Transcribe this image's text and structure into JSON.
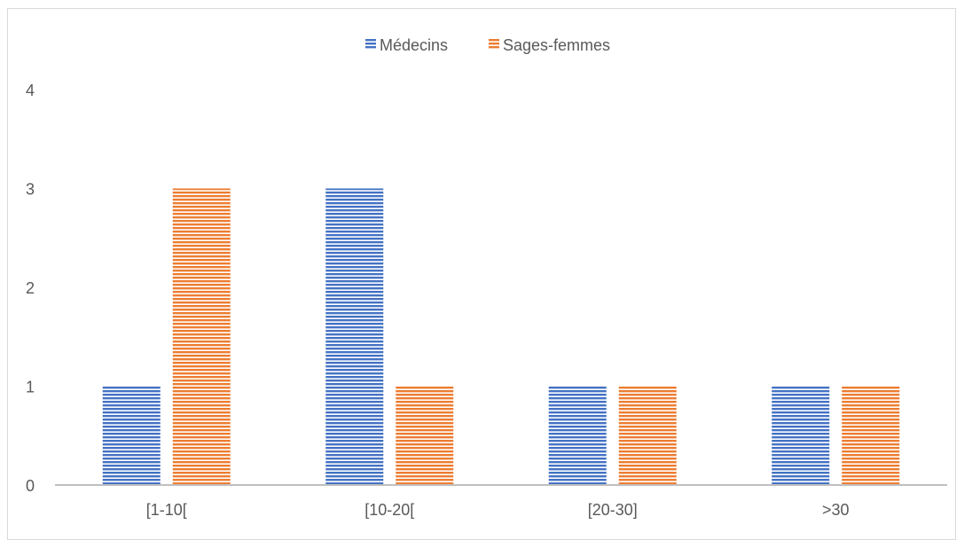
{
  "chart_data": {
    "type": "bar",
    "categories": [
      "[1-10[",
      "[10-20[",
      "[20-30]",
      ">30"
    ],
    "series": [
      {
        "name": "Médecins",
        "values": [
          1,
          3,
          1,
          1
        ],
        "color": "#4472C4"
      },
      {
        "name": "Sages-femmes",
        "values": [
          3,
          1,
          1,
          1
        ],
        "color": "#ED7D31"
      }
    ],
    "ylim": [
      0,
      4
    ],
    "yticks": [
      0,
      1,
      2,
      3,
      4
    ],
    "grid": false,
    "legend_position": "top",
    "bar_pattern": "horizontal-stripes"
  }
}
